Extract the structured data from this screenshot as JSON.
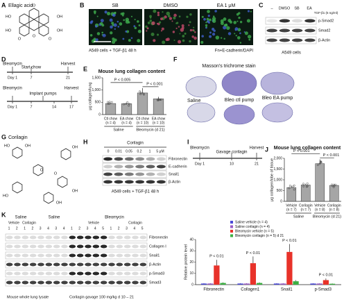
{
  "panels": {
    "A": {
      "letter": "A",
      "title": "Ellagic acid",
      "atoms": [
        "HO",
        "OH",
        "O",
        "O",
        "HO",
        "OH",
        "O",
        "O"
      ]
    },
    "B": {
      "letter": "B",
      "conditions": [
        "SB",
        "DMSO",
        "EA 1 μM"
      ],
      "scale": "500 μm",
      "caption": "A549 cells + TGF-β1 48 h",
      "stain": "Fn+E-cadherin/DAPI"
    },
    "C": {
      "letter": "C",
      "lanes": [
        "–",
        "DMSO",
        "SB",
        "EA"
      ],
      "treatment": "TGF-β1 (5 ng/ml)",
      "rows": [
        "p-Smad2",
        "Smad2",
        "β-Actin"
      ],
      "caption": "A549 cells"
    },
    "D": {
      "letter": "D",
      "timeline1": {
        "events": [
          "Bleomycin",
          "Start chow",
          "Harvest"
        ],
        "days": [
          "Day 1",
          "7",
          "21"
        ]
      },
      "timeline2": {
        "events": [
          "Bleomycin",
          "Implant pumps",
          "Harvest"
        ],
        "days": [
          "Day 1",
          "7",
          "14",
          "17"
        ]
      }
    },
    "F": {
      "letter": "F",
      "title": "Masson's trichrome stain",
      "labels": [
        "Saline",
        "Bleo ctl pump",
        "Bleo EA pump"
      ]
    },
    "G": {
      "letter": "G",
      "title": "Corilagin",
      "atoms": [
        "HO",
        "OH",
        "HO",
        "O",
        "O",
        "OH",
        "OH",
        "OH"
      ]
    },
    "H": {
      "letter": "H",
      "treatment": "Corilagin",
      "doses": [
        "0",
        "0.01",
        "0.05",
        "0.2",
        "1",
        "5 μM"
      ],
      "rows": [
        "Fibronectin",
        "E-cadherin",
        "Snail1",
        "β-Actin"
      ],
      "caption": "A549 cells + TGF-β1 48 h"
    },
    "I": {
      "letter": "I",
      "events": [
        "Bleomycin",
        "Gavage corilagin",
        "Harvest"
      ],
      "days": [
        "Day 1",
        "10",
        "21"
      ]
    },
    "K": {
      "letter": "K",
      "groups": [
        "Saline",
        "Saline",
        "Bleomycin"
      ],
      "subgroups": [
        "Vehicle",
        "Corilagin",
        "Vehicle",
        "Corilagin"
      ],
      "lanes": [
        "1",
        "2",
        "1",
        "2",
        "3",
        "4",
        "3",
        "4",
        "1",
        "2",
        "3",
        "4",
        "5",
        "1",
        "2",
        "3",
        "4",
        "5"
      ],
      "rows": [
        "Fibronectin",
        "Collagen I",
        "Snail1",
        "β-Actin",
        "p-Smad3",
        "Smad3"
      ],
      "caption": "Mouse whole lung lysate",
      "treatment": "Corilagin gavage 100 mg/kg d 10 – 21"
    }
  },
  "chart_data": [
    {
      "panel": "E",
      "type": "bar",
      "title": "Mouse lung collagen content",
      "y_label": "μg collagen/lung",
      "categories": [
        "Ctl chow",
        "EA chow",
        "Ctl chow",
        "EA chow"
      ],
      "n_labels": [
        "(n = 4)",
        "(n = 4)",
        "(n = 10)",
        "(n = 10)"
      ],
      "groups": [
        "Saline",
        "Bleomycin (d 21)"
      ],
      "values": [
        450,
        440,
        880,
        640
      ],
      "errors": [
        20,
        20,
        200,
        80
      ],
      "color": "#a6a6a6",
      "ylim": [
        0,
        1500
      ],
      "yticks": [
        0,
        500,
        {
          "value": 1000,
          "label": "1,000"
        },
        {
          "value": 1500,
          "label": "1,500"
        }
      ],
      "annotations": [
        "P < 0.005",
        "P < 0.001"
      ]
    },
    {
      "panel": "J",
      "type": "bar",
      "title": "Mouse lung collagen content",
      "y_label": "μg collagen/lobe of tissue",
      "categories": [
        "Vehicle",
        "Corilagin",
        "Vehicle",
        "Corilagin"
      ],
      "n_labels": [
        "(n = 7)",
        "(n = 7)",
        "(n = 8)",
        "(n = 8)"
      ],
      "groups": [
        "Saline",
        "Bleomycin (d 21)"
      ],
      "values": [
        640,
        760,
        1750,
        740
      ],
      "errors": [
        80,
        60,
        200,
        80
      ],
      "color": "#a6a6a6",
      "ylim": [
        0,
        2000
      ],
      "yticks": [
        0,
        500,
        {
          "value": 1000,
          "label": "1,000"
        },
        {
          "value": 1500,
          "label": "1,500"
        },
        {
          "value": 2000,
          "label": "2,000"
        }
      ],
      "annotations": [
        "P < 0.001",
        "P < 0.001"
      ]
    },
    {
      "panel": "K",
      "type": "grouped-bar",
      "y_label": "Relative protein level",
      "categories": [
        "Fibronectin",
        "Collagen1",
        "Snail1",
        "p-Smad3"
      ],
      "series": [
        {
          "name": "Saline vehicle (n = 4)",
          "color": "#4a4ad8",
          "values": [
            1,
            1,
            1,
            1
          ],
          "errors": [
            0.3,
            0.3,
            0.3,
            0.2
          ]
        },
        {
          "name": "Saline corilagin (n = 4)",
          "color": "#9a5cc6",
          "values": [
            1,
            1,
            1,
            1
          ],
          "errors": [
            0.3,
            0.3,
            0.3,
            0.2
          ]
        },
        {
          "name": "Bleomycin vehicle (n = 5)",
          "color": "#e8322a",
          "values": [
            17,
            19,
            29,
            4
          ],
          "errors": [
            5,
            6,
            7,
            1.5
          ]
        },
        {
          "name": "Bleomycin corilagin (n = 5) d 21",
          "color": "#3cb043",
          "values": [
            1.5,
            1.5,
            3,
            0.8
          ],
          "errors": [
            0.5,
            0.5,
            1,
            0.3
          ]
        }
      ],
      "ylim": [
        0,
        40
      ],
      "yticks": [
        0,
        10,
        20,
        30,
        40
      ],
      "annotations": [
        "P < 0.01",
        "P < 0.01",
        "P < 0.01",
        "P < 0.01"
      ]
    }
  ]
}
